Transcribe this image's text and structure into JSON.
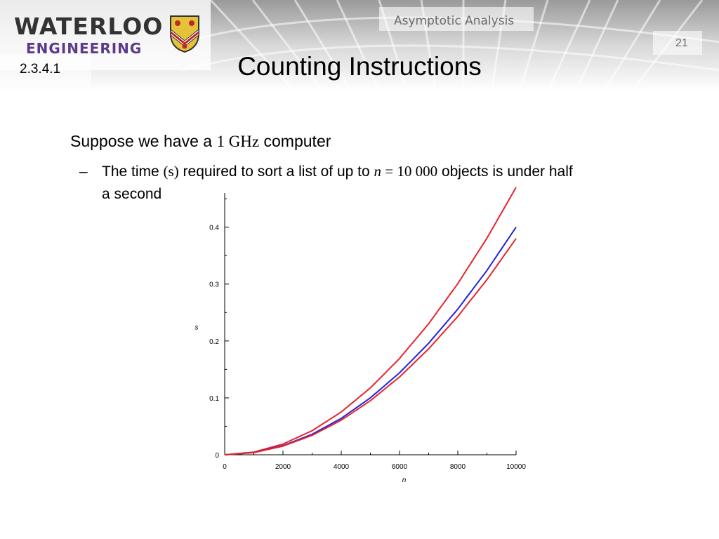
{
  "header": {
    "logo_line1": "WATERLOO",
    "logo_line2": "ENGINEERING",
    "crest_icon": "university-crest-icon",
    "course": "Asymptotic Analysis",
    "slide_number": "21",
    "section": "2.3.4.1",
    "title": "Counting Instructions",
    "logo_color": "#333333",
    "engineering_color": "#5b3a8c"
  },
  "body": {
    "bullet1": {
      "pre": "Suppose we have a ",
      "math": "1 GHz",
      "post": " computer"
    },
    "bullet2": {
      "dash": "–",
      "t1": "The time ",
      "m1": "(s)",
      "t2": " required to sort a list of up to ",
      "m2": "n",
      "m3": " = 10 000",
      "t3": " objects is under half",
      "t4": "a second"
    }
  },
  "chart_data": {
    "type": "line",
    "xlabel": "n",
    "ylabel": "s",
    "xlim": [
      0,
      10000
    ],
    "ylim": [
      0,
      0.46
    ],
    "x_ticks": [
      0,
      2000,
      4000,
      6000,
      8000,
      10000
    ],
    "y_ticks": [
      0,
      0.1,
      0.2,
      0.3,
      0.4
    ],
    "x_tick_labels": [
      "0",
      "2000",
      "4000",
      "6000",
      "8000",
      "10000"
    ],
    "y_tick_labels": [
      "0",
      "0.1",
      "0.2",
      "0.3",
      "0.4"
    ],
    "x": [
      0,
      1000,
      2000,
      3000,
      4000,
      5000,
      6000,
      7000,
      8000,
      9000,
      10000
    ],
    "series": [
      {
        "color": "#e8242c",
        "values": [
          0,
          0.0047,
          0.0188,
          0.0423,
          0.0752,
          0.1175,
          0.1692,
          0.2303,
          0.3008,
          0.3807,
          0.47
        ]
      },
      {
        "color": "#2222dd",
        "values": [
          0,
          0.004,
          0.016,
          0.036,
          0.064,
          0.1,
          0.144,
          0.196,
          0.256,
          0.324,
          0.4
        ]
      },
      {
        "color": "#e8242c",
        "values": [
          0,
          0.0038,
          0.0152,
          0.0342,
          0.0608,
          0.095,
          0.1368,
          0.1862,
          0.2432,
          0.3078,
          0.38
        ]
      }
    ],
    "grid": false
  }
}
